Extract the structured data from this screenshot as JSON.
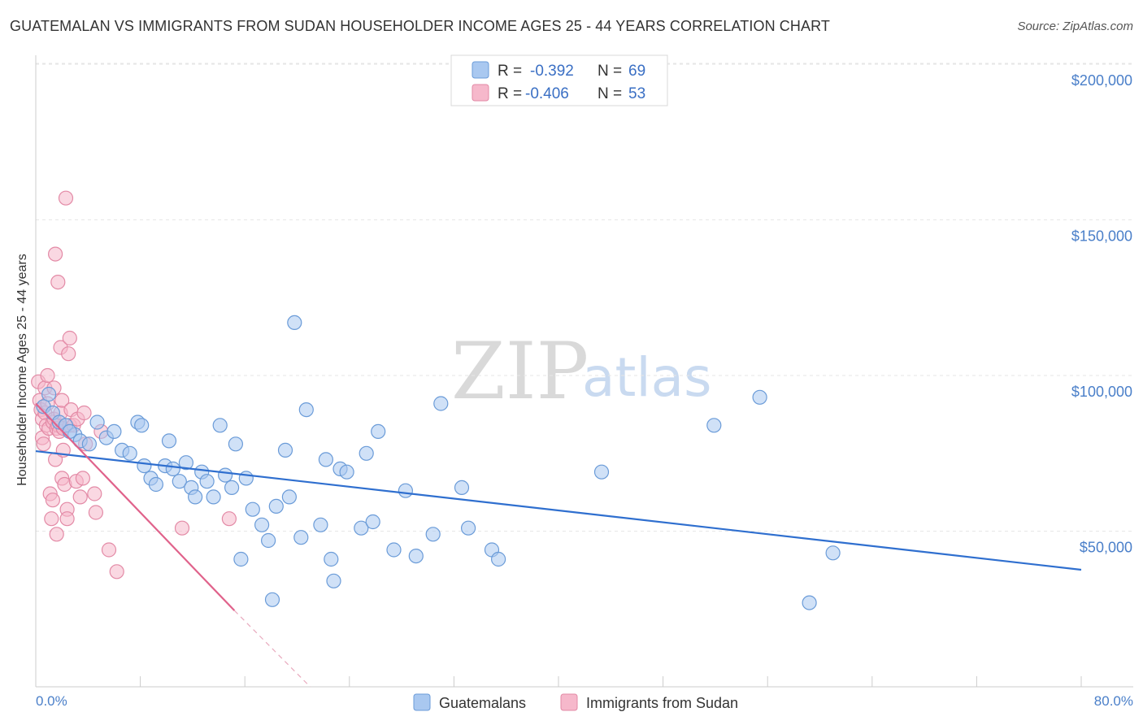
{
  "title": "GUATEMALAN VS IMMIGRANTS FROM SUDAN HOUSEHOLDER INCOME AGES 25 - 44 YEARS CORRELATION CHART",
  "source": "Source: ZipAtlas.com",
  "watermark": {
    "zip": "ZIP",
    "atlas": "atlas"
  },
  "colors": {
    "blue_fill": "#a9c8f0",
    "blue_stroke": "#6a9bd8",
    "blue_line": "#2f6fcf",
    "pink_fill": "#f6b8cb",
    "pink_stroke": "#e38aa6",
    "pink_line": "#e0628b",
    "grid": "#e6e6e6",
    "axis_text": "#4a7fc9"
  },
  "legend": {
    "rows": [
      {
        "r_label": "R = ",
        "r_value": "-0.392",
        "n_label": "N = ",
        "n_value": "69"
      },
      {
        "r_label": "R = ",
        "r_value": "-0.406",
        "n_label": "N = ",
        "n_value": "53"
      }
    ]
  },
  "bottom_legend": {
    "series1": "Guatemalans",
    "series2": "Immigrants from Sudan"
  },
  "chart_data": {
    "type": "scatter",
    "title": "GUATEMALAN VS IMMIGRANTS FROM SUDAN HOUSEHOLDER INCOME AGES 25 - 44 YEARS CORRELATION CHART",
    "xlabel": "",
    "ylabel": "Householder Income Ages 25 - 44 years",
    "xlim": [
      0,
      80
    ],
    "ylim": [
      0,
      205000
    ],
    "x_tick_labels": {
      "min": "0.0%",
      "max": "80.0%"
    },
    "y_ticks": [
      {
        "value": 50000,
        "label": "$50,000"
      },
      {
        "value": 100000,
        "label": "$100,000"
      },
      {
        "value": 150000,
        "label": "$150,000"
      },
      {
        "value": 200000,
        "label": "$200,000"
      }
    ],
    "series": [
      {
        "name": "Guatemalans",
        "r": -0.392,
        "n": 69,
        "trend": {
          "x0": 0.0,
          "y0": 75700,
          "x1": 80.0,
          "y1": 37600
        },
        "points": [
          [
            0.6,
            90000
          ],
          [
            1.3,
            88000
          ],
          [
            1.8,
            85000
          ],
          [
            2.3,
            84000
          ],
          [
            3.0,
            81000
          ],
          [
            3.4,
            79000
          ],
          [
            4.1,
            78000
          ],
          [
            4.7,
            85000
          ],
          [
            5.4,
            80000
          ],
          [
            6.0,
            82000
          ],
          [
            6.6,
            76000
          ],
          [
            7.2,
            75000
          ],
          [
            7.8,
            85000
          ],
          [
            8.3,
            71000
          ],
          [
            8.8,
            67000
          ],
          [
            9.2,
            65000
          ],
          [
            9.9,
            71000
          ],
          [
            10.2,
            79000
          ],
          [
            10.5,
            70000
          ],
          [
            11.0,
            66000
          ],
          [
            11.5,
            72000
          ],
          [
            11.9,
            64000
          ],
          [
            12.2,
            61000
          ],
          [
            12.7,
            69000
          ],
          [
            13.1,
            66000
          ],
          [
            13.6,
            61000
          ],
          [
            14.1,
            84000
          ],
          [
            14.5,
            68000
          ],
          [
            15.0,
            64000
          ],
          [
            15.3,
            78000
          ],
          [
            15.7,
            41000
          ],
          [
            16.1,
            67000
          ],
          [
            16.6,
            57000
          ],
          [
            17.3,
            52000
          ],
          [
            17.8,
            47000
          ],
          [
            18.1,
            28000
          ],
          [
            18.4,
            58000
          ],
          [
            19.1,
            76000
          ],
          [
            19.4,
            61000
          ],
          [
            19.8,
            117000
          ],
          [
            20.3,
            48000
          ],
          [
            20.7,
            89000
          ],
          [
            21.8,
            52000
          ],
          [
            22.2,
            73000
          ],
          [
            22.6,
            41000
          ],
          [
            22.8,
            34000
          ],
          [
            23.3,
            70000
          ],
          [
            23.8,
            69000
          ],
          [
            24.9,
            51000
          ],
          [
            25.3,
            75000
          ],
          [
            25.8,
            53000
          ],
          [
            26.2,
            82000
          ],
          [
            27.4,
            44000
          ],
          [
            28.3,
            63000
          ],
          [
            29.1,
            42000
          ],
          [
            30.4,
            49000
          ],
          [
            31.0,
            91000
          ],
          [
            32.6,
            64000
          ],
          [
            33.1,
            51000
          ],
          [
            34.9,
            44000
          ],
          [
            35.4,
            41000
          ],
          [
            43.3,
            69000
          ],
          [
            51.9,
            84000
          ],
          [
            55.4,
            93000
          ],
          [
            59.2,
            27000
          ],
          [
            61.0,
            43000
          ],
          [
            1.0,
            94000
          ],
          [
            2.6,
            82000
          ],
          [
            8.1,
            84000
          ]
        ]
      },
      {
        "name": "Immigrants from Sudan",
        "r": -0.406,
        "n": 53,
        "trend": {
          "x0": 0.0,
          "y0": 91000,
          "x1": 15.2,
          "y1": 24500
        },
        "trend_dashed": {
          "x0": 15.2,
          "y0": 24500,
          "x1": 21.0,
          "y1": 0
        },
        "points": [
          [
            0.2,
            98000
          ],
          [
            0.3,
            92000
          ],
          [
            0.4,
            89000
          ],
          [
            0.5,
            86000
          ],
          [
            0.5,
            80000
          ],
          [
            0.6,
            78000
          ],
          [
            0.7,
            96000
          ],
          [
            0.7,
            88000
          ],
          [
            0.8,
            84000
          ],
          [
            0.9,
            100000
          ],
          [
            0.9,
            91000
          ],
          [
            1.0,
            83000
          ],
          [
            1.1,
            62000
          ],
          [
            1.2,
            54000
          ],
          [
            1.3,
            85000
          ],
          [
            1.3,
            60000
          ],
          [
            1.4,
            96000
          ],
          [
            1.4,
            86000
          ],
          [
            1.5,
            73000
          ],
          [
            1.5,
            139000
          ],
          [
            1.6,
            83000
          ],
          [
            1.6,
            49000
          ],
          [
            1.7,
            130000
          ],
          [
            1.7,
            84000
          ],
          [
            1.8,
            82000
          ],
          [
            1.9,
            88000
          ],
          [
            1.9,
            109000
          ],
          [
            2.0,
            92000
          ],
          [
            2.0,
            67000
          ],
          [
            2.1,
            76000
          ],
          [
            2.1,
            83000
          ],
          [
            2.2,
            65000
          ],
          [
            2.3,
            157000
          ],
          [
            2.4,
            57000
          ],
          [
            2.4,
            54000
          ],
          [
            2.5,
            107000
          ],
          [
            2.6,
            112000
          ],
          [
            2.6,
            84000
          ],
          [
            2.7,
            89000
          ],
          [
            2.9,
            84000
          ],
          [
            3.1,
            66000
          ],
          [
            3.2,
            86000
          ],
          [
            3.4,
            61000
          ],
          [
            3.6,
            67000
          ],
          [
            3.7,
            88000
          ],
          [
            3.8,
            78000
          ],
          [
            4.5,
            62000
          ],
          [
            4.6,
            56000
          ],
          [
            5.0,
            82000
          ],
          [
            5.6,
            44000
          ],
          [
            6.2,
            37000
          ],
          [
            11.2,
            51000
          ],
          [
            14.8,
            54000
          ]
        ]
      }
    ]
  }
}
